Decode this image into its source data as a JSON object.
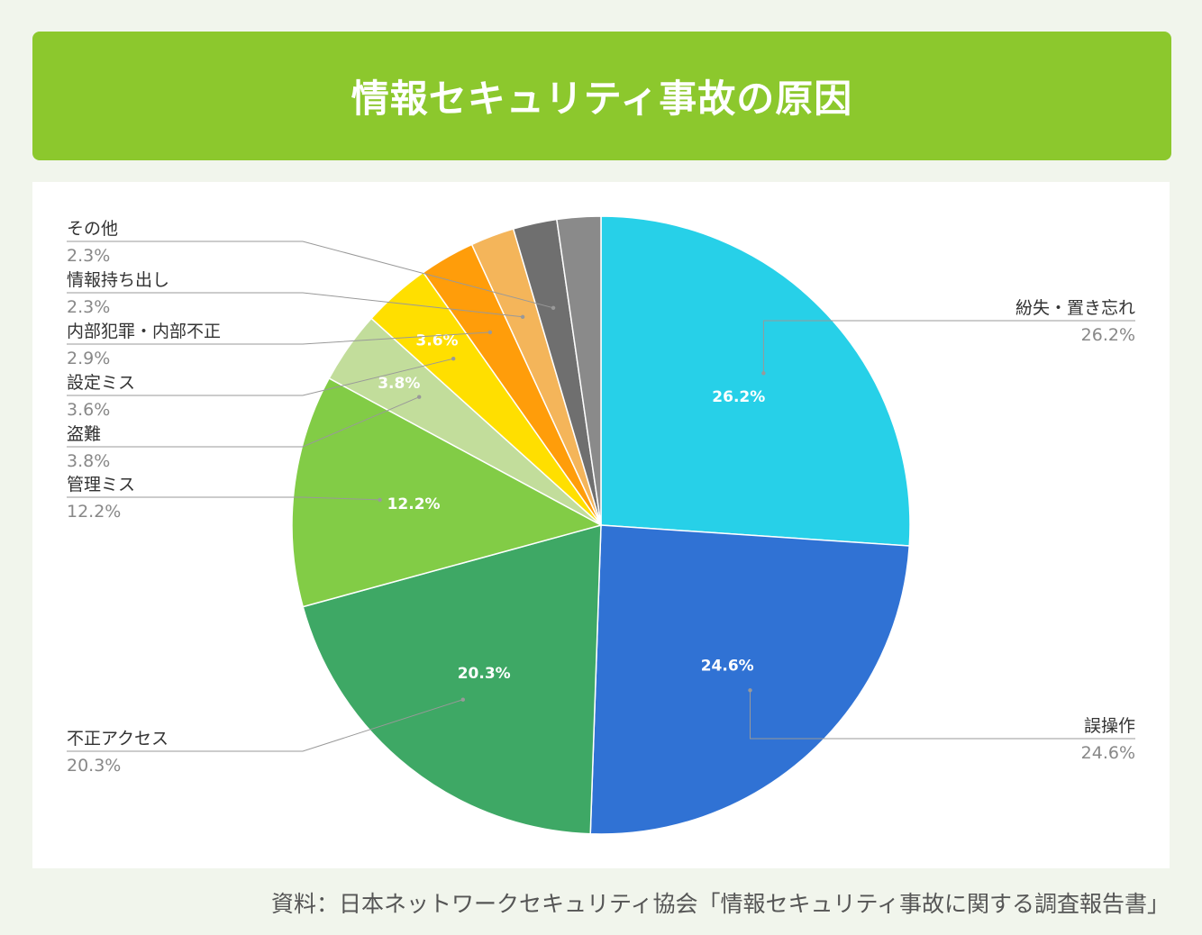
{
  "header": {
    "title": "情報セキュリティ事故の原因"
  },
  "source": "資料：日本ネットワークセキュリティ協会「情報セキュリティ事故に関する調査報告書」",
  "chart_data": {
    "type": "pie",
    "title": "情報セキュリティ事故の原因",
    "slices": [
      {
        "label": "紛失・置き忘れ",
        "value": 26.2,
        "display": "26.2%",
        "color": "#27d0e8"
      },
      {
        "label": "誤操作",
        "value": 24.6,
        "display": "24.6%",
        "color": "#3072d4"
      },
      {
        "label": "不正アクセス",
        "value": 20.3,
        "display": "20.3%",
        "color": "#3ea865"
      },
      {
        "label": "管理ミス",
        "value": 12.2,
        "display": "12.2%",
        "color": "#82cc46"
      },
      {
        "label": "盗難",
        "value": 3.8,
        "display": "3.8%",
        "color": "#c2dd9b"
      },
      {
        "label": "設定ミス",
        "value": 3.6,
        "display": "3.6%",
        "color": "#ffdf00"
      },
      {
        "label": "内部犯罪・内部不正",
        "value": 2.9,
        "display": "2.9%",
        "color": "#ff9d0a"
      },
      {
        "label": "情報持ち出し",
        "value": 2.3,
        "display": "2.3%",
        "color": "#f4b55a"
      },
      {
        "label": "その他",
        "value": 2.3,
        "display": "2.3%",
        "color": "#6f6f6f"
      },
      {
        "label": "",
        "value": 2.3,
        "display": "",
        "color": "#8a8a8a"
      }
    ]
  }
}
